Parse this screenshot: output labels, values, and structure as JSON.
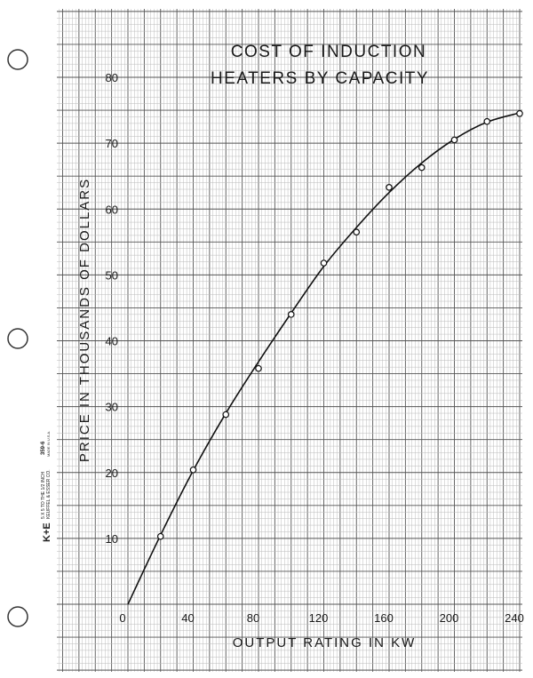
{
  "paper": {
    "brand": "K+E",
    "spec_line1": "5 X 5 TO THE 1/2 INCH",
    "spec_line2": "KEUFFEL & ESSER CO.",
    "part_number": "359-6",
    "made_in": "MADE IN U.S.A."
  },
  "chart_data": {
    "type": "scatter",
    "title": [
      "COST OF INDUCTION",
      "HEATERS BY CAPACITY"
    ],
    "xlabel": "OUTPUT RATING IN KW",
    "ylabel": "PRICE IN THOUSANDS OF DOLLARS",
    "xlim": [
      0,
      240
    ],
    "ylim": [
      0,
      80
    ],
    "x_ticks": [
      0,
      40,
      80,
      120,
      160,
      200,
      240
    ],
    "y_ticks": [
      10,
      20,
      30,
      40,
      50,
      60,
      70,
      80
    ],
    "grid": true,
    "series": [
      {
        "points": [
          {
            "x": 20,
            "y": 10.3
          },
          {
            "x": 40,
            "y": 20.4
          },
          {
            "x": 60,
            "y": 28.8
          },
          {
            "x": 80,
            "y": 35.8
          },
          {
            "x": 100,
            "y": 44.0
          },
          {
            "x": 120,
            "y": 51.8
          },
          {
            "x": 140,
            "y": 56.5
          },
          {
            "x": 160,
            "y": 63.3
          },
          {
            "x": 180,
            "y": 66.3
          },
          {
            "x": 200,
            "y": 70.5
          },
          {
            "x": 220,
            "y": 73.3
          },
          {
            "x": 240,
            "y": 74.5
          }
        ]
      }
    ],
    "curve": [
      {
        "x": 0,
        "y": 0
      },
      {
        "x": 20,
        "y": 10.5
      },
      {
        "x": 40,
        "y": 20.3
      },
      {
        "x": 60,
        "y": 29.0
      },
      {
        "x": 80,
        "y": 36.8
      },
      {
        "x": 100,
        "y": 44.2
      },
      {
        "x": 120,
        "y": 51.3
      },
      {
        "x": 140,
        "y": 57.2
      },
      {
        "x": 160,
        "y": 62.5
      },
      {
        "x": 180,
        "y": 67.0
      },
      {
        "x": 200,
        "y": 70.6
      },
      {
        "x": 220,
        "y": 73.2
      },
      {
        "x": 240,
        "y": 74.6
      }
    ]
  }
}
